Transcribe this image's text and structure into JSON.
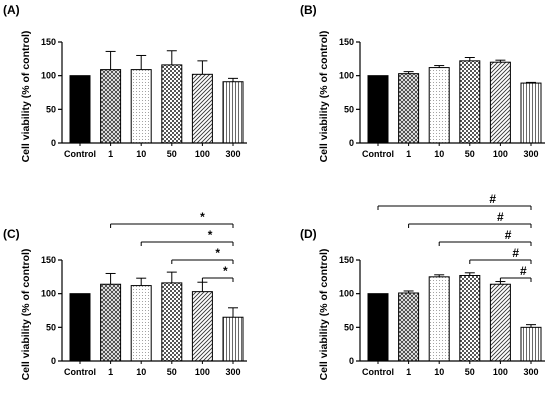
{
  "chart_data": [
    {
      "type": "bar",
      "panel": "(A)",
      "ylabel": "Cell viability (% of control)",
      "categories": [
        "Control",
        "1",
        "10",
        "50",
        "100",
        "300"
      ],
      "values": [
        100,
        109,
        109,
        116,
        102,
        91
      ],
      "errors": [
        0,
        27,
        21,
        21,
        20,
        5
      ],
      "ylim": [
        0,
        150
      ],
      "yticks": [
        0,
        50,
        100,
        150
      ],
      "significance": []
    },
    {
      "type": "bar",
      "panel": "(B)",
      "ylabel": "Cell viability (% of control)",
      "categories": [
        "Control",
        "1",
        "10",
        "50",
        "100",
        "300"
      ],
      "values": [
        100,
        103,
        112,
        122,
        120,
        89
      ],
      "errors": [
        0,
        3,
        3,
        5,
        3,
        1
      ],
      "ylim": [
        0,
        150
      ],
      "yticks": [
        0,
        50,
        100,
        150
      ],
      "significance": []
    },
    {
      "type": "bar",
      "panel": "(C)",
      "ylabel": "Cell viability (% of control)",
      "categories": [
        "Control",
        "1",
        "10",
        "50",
        "100",
        "300"
      ],
      "values": [
        100,
        114,
        112,
        116,
        103,
        65
      ],
      "errors": [
        0,
        16,
        11,
        16,
        14,
        14
      ],
      "ylim": [
        0,
        150
      ],
      "yticks": [
        0,
        50,
        100,
        150
      ],
      "significance": [
        {
          "from": "1",
          "to": "300",
          "symbol": "*"
        },
        {
          "from": "10",
          "to": "300",
          "symbol": "*"
        },
        {
          "from": "50",
          "to": "300",
          "symbol": "*"
        },
        {
          "from": "100",
          "to": "300",
          "symbol": "*"
        }
      ]
    },
    {
      "type": "bar",
      "panel": "(D)",
      "ylabel": "Cell viability (% of control)",
      "categories": [
        "Control",
        "1",
        "10",
        "50",
        "100",
        "300"
      ],
      "values": [
        100,
        101,
        125,
        127,
        114,
        50
      ],
      "errors": [
        0,
        3,
        3,
        4,
        4,
        4
      ],
      "ylim": [
        0,
        150
      ],
      "yticks": [
        0,
        50,
        100,
        150
      ],
      "significance": [
        {
          "from": "Control",
          "to": "300",
          "symbol": "#"
        },
        {
          "from": "1",
          "to": "300",
          "symbol": "#"
        },
        {
          "from": "10",
          "to": "300",
          "symbol": "#"
        },
        {
          "from": "50",
          "to": "300",
          "symbol": "#"
        },
        {
          "from": "100",
          "to": "300",
          "symbol": "#"
        }
      ]
    }
  ]
}
